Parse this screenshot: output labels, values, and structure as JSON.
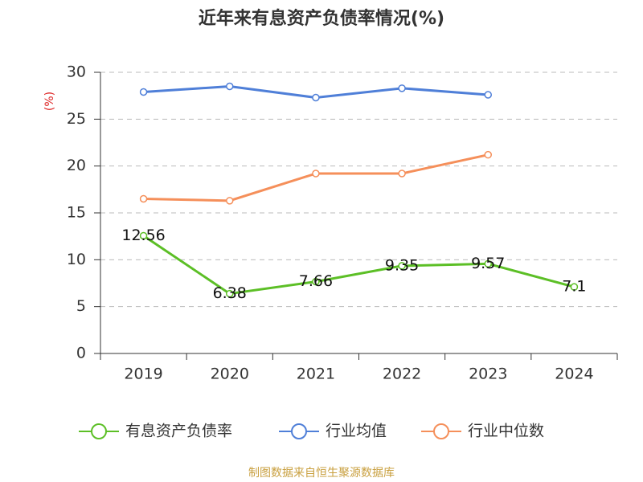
{
  "chart_data": {
    "type": "line",
    "title": "近年来有息资产负债率情况(%)",
    "y_label": "(%)",
    "footer": "制图数据来自恒生聚源数据库",
    "categories": [
      "2019",
      "2020",
      "2021",
      "2022",
      "2023",
      "2024"
    ],
    "series": [
      {
        "name": "有息资产负债率",
        "color": "#5cbf26",
        "values": [
          12.56,
          6.38,
          7.66,
          9.35,
          9.57,
          7.1
        ],
        "show_labels": true
      },
      {
        "name": "行业均值",
        "color": "#4f7fd8",
        "values": [
          27.9,
          28.5,
          27.3,
          28.3,
          27.6,
          null
        ],
        "show_labels": false
      },
      {
        "name": "行业中位数",
        "color": "#f58f5a",
        "values": [
          16.5,
          16.3,
          19.2,
          19.2,
          21.2,
          null
        ],
        "show_labels": false
      }
    ],
    "ylim": [
      0,
      30
    ],
    "yticks": [
      0,
      5,
      10,
      15,
      20,
      25,
      30
    ],
    "grid": true
  }
}
